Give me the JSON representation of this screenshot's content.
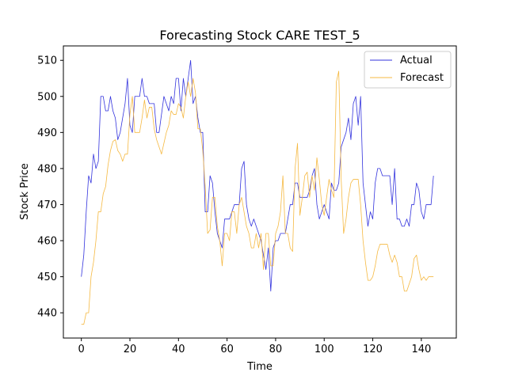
{
  "chart_data": {
    "type": "line",
    "title": "Forecasting Stock CARE TEST_5",
    "xlabel": "Time",
    "ylabel": "Stock Price",
    "xlim": [
      -7.4,
      154.4
    ],
    "ylim": [
      433,
      514
    ],
    "x_ticks": [
      0,
      20,
      40,
      60,
      80,
      100,
      120,
      140
    ],
    "y_ticks": [
      440,
      450,
      460,
      470,
      480,
      490,
      500,
      510
    ],
    "grid": false,
    "legend_position": "top-right",
    "series": [
      {
        "name": "Actual",
        "color": "#3333dd",
        "values": [
          450,
          456,
          468,
          478,
          476,
          484,
          480,
          482,
          500,
          500,
          496,
          496,
          500,
          496,
          494,
          488,
          490,
          494,
          498,
          505,
          492,
          490,
          500,
          500,
          500,
          505,
          500,
          500,
          498,
          498,
          498,
          490,
          490,
          495,
          500,
          498,
          496,
          500,
          498,
          505,
          505,
          496,
          505,
          500,
          505,
          510,
          498,
          500,
          494,
          490,
          490,
          468,
          468,
          478,
          476,
          468,
          462,
          460,
          458,
          466,
          466,
          466,
          468,
          470,
          470,
          470,
          480,
          482,
          470,
          466,
          464,
          466,
          464,
          462,
          460,
          456,
          452,
          458,
          446,
          458,
          460,
          460,
          462,
          462,
          462,
          466,
          470,
          470,
          476,
          476,
          472,
          472,
          472,
          472,
          474,
          478,
          480,
          470,
          466,
          468,
          470,
          468,
          466,
          476,
          474,
          474,
          476,
          486,
          488,
          490,
          494,
          488,
          498,
          500,
          492,
          500,
          476,
          470,
          464,
          468,
          466,
          476,
          480,
          480,
          478,
          478,
          478,
          478,
          470,
          480,
          466,
          466,
          464,
          464,
          466,
          464,
          470,
          470,
          476,
          474,
          468,
          466,
          470,
          470,
          470,
          478
        ]
      },
      {
        "name": "Forecast",
        "color": "#f5b942",
        "values": [
          436.8,
          436.8,
          440,
          440,
          450,
          454,
          460,
          468,
          468,
          473,
          475,
          481,
          485,
          487.5,
          488,
          485,
          484,
          482,
          484,
          484,
          495,
          500,
          490,
          490,
          490,
          494,
          499,
          494,
          497,
          497,
          491,
          488,
          486,
          484,
          487,
          490,
          492,
          496,
          495,
          495,
          498,
          497,
          494,
          500,
          504,
          500,
          505,
          501,
          491,
          491,
          485,
          475,
          462,
          463,
          472,
          472,
          464,
          460,
          453,
          462,
          462,
          460,
          468,
          468,
          462,
          470,
          472,
          468,
          464,
          462,
          458,
          458,
          462,
          458,
          462,
          452,
          462,
          462,
          453,
          453,
          462,
          464,
          468,
          478,
          462,
          462,
          458,
          457,
          480,
          487,
          467,
          472,
          478,
          479,
          472,
          478,
          474,
          483,
          477,
          470,
          467,
          472,
          477,
          474,
          472,
          504,
          507,
          477,
          462,
          466,
          472,
          476,
          477,
          477,
          477,
          470,
          460,
          454,
          449,
          449,
          450,
          453,
          457,
          459,
          459,
          459,
          459,
          456,
          454,
          456,
          454,
          450,
          450,
          446,
          446,
          448,
          450,
          455,
          456,
          452,
          449,
          450,
          449,
          450,
          450,
          450
        ]
      }
    ]
  }
}
